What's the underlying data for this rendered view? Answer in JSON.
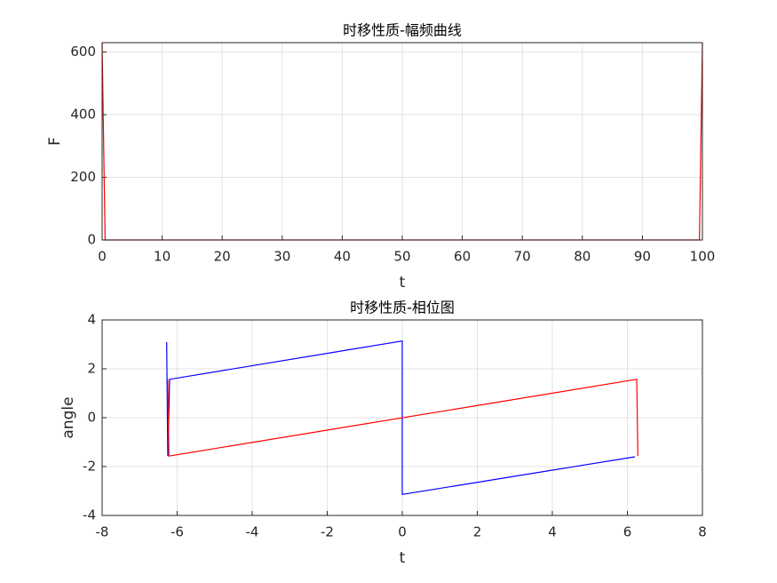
{
  "chart_data": [
    {
      "type": "line",
      "title": "时移性质-幅频曲线",
      "xlabel": "t",
      "ylabel": "F",
      "xlim": [
        0,
        100
      ],
      "ylim": [
        0,
        630
      ],
      "xticks": [
        0,
        10,
        20,
        30,
        40,
        50,
        60,
        70,
        80,
        90,
        100
      ],
      "yticks": [
        0,
        200,
        400,
        600
      ],
      "grid": true,
      "series": [
        {
          "color": "#ff0000",
          "x": [
            0,
            0.5,
            99.5,
            100
          ],
          "values": [
            628,
            0,
            0,
            628
          ]
        }
      ]
    },
    {
      "type": "line",
      "title": "时移性质-相位图",
      "xlabel": "t",
      "ylabel": "angle",
      "xlim": [
        -8,
        8
      ],
      "ylim": [
        -4,
        4
      ],
      "xticks": [
        -8,
        -6,
        -4,
        -2,
        0,
        2,
        4,
        6,
        8
      ],
      "yticks": [
        -4,
        -2,
        0,
        2,
        4
      ],
      "grid": true,
      "series": [
        {
          "color": "#0000ff",
          "x": [
            -6.28,
            -6.25,
            -6.2,
            0,
            0,
            6.2
          ],
          "values": [
            3.1,
            -1.57,
            1.57,
            3.14,
            -3.14,
            -1.6
          ]
        },
        {
          "color": "#ff0000",
          "x": [
            -6.25,
            -6.22,
            6.25,
            6.28
          ],
          "values": [
            1.57,
            -1.57,
            1.57,
            -1.57
          ]
        }
      ]
    }
  ]
}
